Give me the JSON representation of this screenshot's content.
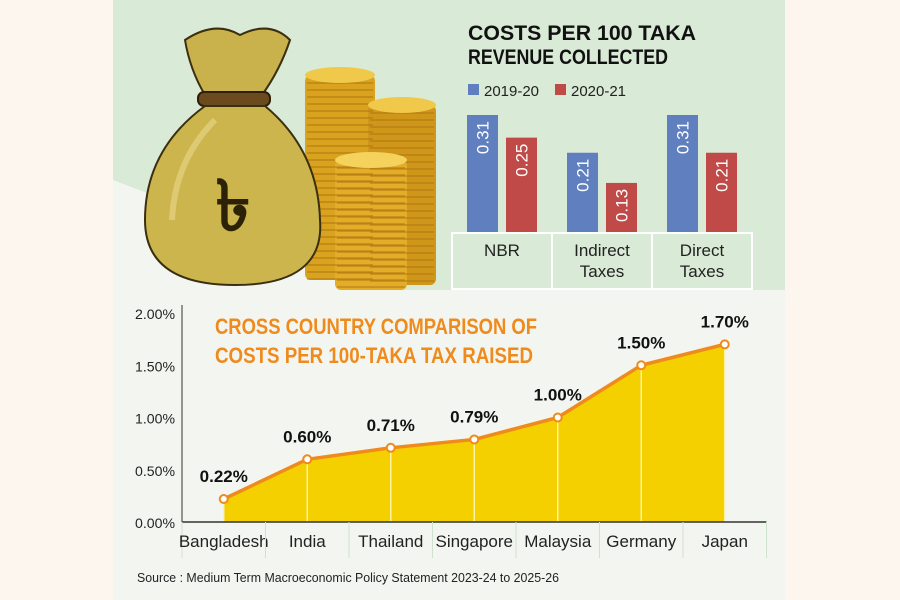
{
  "colors": {
    "blue": "#5f7fbf",
    "red": "#c04a48",
    "orange": "#ef8a1c",
    "yellow": "#f5d000",
    "line": "#ef8a1c",
    "top_bg": "#d9ead6",
    "bottom_bg": "#f3f6f0",
    "outer_bg": "#fdf6ee"
  },
  "illustration": {
    "icon": "money-bag-taka-icon",
    "symbol": "৳"
  },
  "chart_data": [
    {
      "type": "bar",
      "title_line1": "COSTS PER 100 TAKA",
      "title_line2": "REVENUE COLLECTED",
      "categories": [
        [
          "NBR"
        ],
        [
          "Indirect",
          "Taxes"
        ],
        [
          "Direct",
          "Taxes"
        ]
      ],
      "series": [
        {
          "name": "2019-20",
          "values": [
            0.31,
            0.21,
            0.31
          ],
          "labels": [
            "0.31",
            "0.21",
            "0.31"
          ]
        },
        {
          "name": "2020-21",
          "values": [
            0.25,
            0.13,
            0.21
          ],
          "labels": [
            "0.25",
            "0.13",
            "0.21"
          ]
        }
      ],
      "ylim": [
        0,
        0.31
      ],
      "legend": "top-left"
    },
    {
      "type": "area",
      "title_line1": "CROSS COUNTRY COMPARISON OF",
      "title_line2": "COSTS PER 100-TAKA TAX RAISED",
      "categories": [
        "Bangladesh",
        "India",
        "Thailand",
        "Singapore",
        "Malaysia",
        "Germany",
        "Japan"
      ],
      "values": [
        0.22,
        0.6,
        0.71,
        0.79,
        1.0,
        1.5,
        1.7
      ],
      "labels": [
        "0.22%",
        "0.60%",
        "0.71%",
        "0.79%",
        "1.00%",
        "1.50%",
        "1.70%"
      ],
      "yticks": [
        0,
        0.5,
        1.0,
        1.5,
        2.0
      ],
      "ytick_labels": [
        "0.00%",
        "0.50%",
        "1.00%",
        "1.50%",
        "2.00%"
      ],
      "ylim": [
        0,
        2.0
      ],
      "grid": false
    }
  ],
  "source": "Source : Medium Term Macroeconomic Policy Statement 2023-24 to 2025-26"
}
